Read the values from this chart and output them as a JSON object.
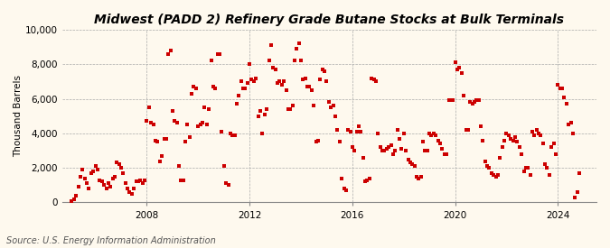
{
  "title": "Midwest (PADD 2) Refinery Grade Butane Stocks at Bulk Terminals",
  "ylabel": "Thousand Barrels",
  "source": "Source: U.S. Energy Information Administration",
  "background_color": "#fef9ee",
  "plot_bg_color": "#fef9ee",
  "marker_color": "#cc0000",
  "marker": "s",
  "marker_size": 9,
  "ylim": [
    0,
    10000
  ],
  "yticks": [
    0,
    2000,
    4000,
    6000,
    8000,
    10000
  ],
  "ytick_labels": [
    "0",
    "2,000",
    "4,000",
    "6,000",
    "8,000",
    "10,000"
  ],
  "xtick_years": [
    2008,
    2012,
    2016,
    2020,
    2024
  ],
  "xlim_left": 2004.7,
  "xlim_right": 2025.5,
  "grid_color": "#aaaaaa",
  "grid_linestyle": "--",
  "title_fontsize": 10,
  "label_fontsize": 7.5,
  "tick_fontsize": 7.5,
  "source_fontsize": 7,
  "data_x": [
    2005.08,
    2005.17,
    2005.25,
    2005.33,
    2005.42,
    2005.5,
    2005.58,
    2005.67,
    2005.75,
    2005.83,
    2005.92,
    2006.0,
    2006.08,
    2006.17,
    2006.25,
    2006.33,
    2006.42,
    2006.5,
    2006.58,
    2006.67,
    2006.75,
    2006.83,
    2006.92,
    2007.0,
    2007.08,
    2007.17,
    2007.25,
    2007.33,
    2007.42,
    2007.5,
    2007.58,
    2007.67,
    2007.75,
    2007.83,
    2007.92,
    2008.0,
    2008.08,
    2008.17,
    2008.25,
    2008.33,
    2008.42,
    2008.5,
    2008.58,
    2008.67,
    2008.75,
    2008.83,
    2008.92,
    2009.0,
    2009.08,
    2009.17,
    2009.25,
    2009.33,
    2009.42,
    2009.5,
    2009.58,
    2009.67,
    2009.75,
    2009.83,
    2009.92,
    2010.0,
    2010.08,
    2010.17,
    2010.25,
    2010.33,
    2010.42,
    2010.5,
    2010.58,
    2010.67,
    2010.75,
    2010.83,
    2010.92,
    2011.0,
    2011.08,
    2011.17,
    2011.25,
    2011.33,
    2011.42,
    2011.5,
    2011.58,
    2011.67,
    2011.75,
    2011.83,
    2011.92,
    2012.0,
    2012.08,
    2012.17,
    2012.25,
    2012.33,
    2012.42,
    2012.5,
    2012.58,
    2012.67,
    2012.75,
    2012.83,
    2012.92,
    2013.0,
    2013.08,
    2013.17,
    2013.25,
    2013.33,
    2013.42,
    2013.5,
    2013.58,
    2013.67,
    2013.75,
    2013.83,
    2013.92,
    2014.0,
    2014.08,
    2014.17,
    2014.25,
    2014.33,
    2014.42,
    2014.5,
    2014.58,
    2014.67,
    2014.75,
    2014.83,
    2014.92,
    2015.0,
    2015.08,
    2015.17,
    2015.25,
    2015.33,
    2015.42,
    2015.5,
    2015.58,
    2015.67,
    2015.75,
    2015.83,
    2015.92,
    2016.0,
    2016.08,
    2016.17,
    2016.25,
    2016.33,
    2016.42,
    2016.5,
    2016.58,
    2016.67,
    2016.75,
    2016.83,
    2016.92,
    2017.0,
    2017.08,
    2017.17,
    2017.25,
    2017.33,
    2017.42,
    2017.5,
    2017.58,
    2017.67,
    2017.75,
    2017.83,
    2017.92,
    2018.0,
    2018.08,
    2018.17,
    2018.25,
    2018.33,
    2018.42,
    2018.5,
    2018.58,
    2018.67,
    2018.75,
    2018.83,
    2018.92,
    2019.0,
    2019.08,
    2019.17,
    2019.25,
    2019.33,
    2019.42,
    2019.5,
    2019.58,
    2019.67,
    2019.75,
    2019.83,
    2019.92,
    2020.0,
    2020.08,
    2020.17,
    2020.25,
    2020.33,
    2020.42,
    2020.5,
    2020.58,
    2020.67,
    2020.75,
    2020.83,
    2020.92,
    2021.0,
    2021.08,
    2021.17,
    2021.25,
    2021.33,
    2021.42,
    2021.5,
    2021.58,
    2021.67,
    2021.75,
    2021.83,
    2021.92,
    2022.0,
    2022.08,
    2022.17,
    2022.25,
    2022.33,
    2022.42,
    2022.5,
    2022.58,
    2022.67,
    2022.75,
    2022.83,
    2022.92,
    2023.0,
    2023.08,
    2023.17,
    2023.25,
    2023.33,
    2023.42,
    2023.5,
    2023.58,
    2023.67,
    2023.75,
    2023.83,
    2023.92,
    2024.0,
    2024.08,
    2024.17,
    2024.25,
    2024.33,
    2024.42,
    2024.5,
    2024.58,
    2024.67,
    2024.75,
    2024.83
  ],
  "data_y": [
    100,
    200,
    400,
    900,
    1500,
    1900,
    1400,
    1100,
    800,
    1700,
    1800,
    2100,
    1900,
    1300,
    1200,
    1000,
    800,
    1100,
    900,
    1400,
    1500,
    2300,
    2200,
    2000,
    1700,
    1100,
    800,
    600,
    500,
    800,
    1200,
    1200,
    1300,
    1100,
    1300,
    4700,
    5500,
    4600,
    4500,
    3600,
    3500,
    2400,
    2700,
    3700,
    3700,
    8600,
    8800,
    5300,
    4700,
    4600,
    2100,
    1300,
    1300,
    3500,
    4500,
    3800,
    6300,
    6700,
    6600,
    4400,
    4500,
    4600,
    5500,
    4500,
    5400,
    8200,
    6700,
    6600,
    8600,
    8600,
    4100,
    2100,
    1100,
    1000,
    4000,
    3900,
    3900,
    5700,
    6200,
    7000,
    6600,
    6600,
    6900,
    8000,
    7100,
    7000,
    7200,
    5000,
    5300,
    4000,
    5100,
    5400,
    8200,
    9100,
    7800,
    7700,
    6900,
    7000,
    6800,
    7000,
    6500,
    5400,
    5400,
    5600,
    8200,
    8900,
    9200,
    8200,
    7100,
    7200,
    6700,
    6700,
    6500,
    5600,
    3500,
    3600,
    7100,
    7700,
    7600,
    7000,
    5800,
    5500,
    5600,
    5000,
    4200,
    3500,
    1400,
    800,
    700,
    4200,
    4100,
    3200,
    3000,
    4100,
    4400,
    4100,
    2600,
    1200,
    1300,
    1400,
    7200,
    7100,
    7000,
    4000,
    3200,
    3000,
    3000,
    3100,
    3200,
    3300,
    2800,
    3000,
    4200,
    3700,
    3100,
    4000,
    3000,
    2500,
    2300,
    2200,
    2100,
    1500,
    1400,
    1500,
    3500,
    3000,
    3000,
    4000,
    3900,
    4000,
    3900,
    3600,
    3400,
    3100,
    2800,
    2800,
    5900,
    5900,
    5900,
    8100,
    7700,
    7800,
    7500,
    6200,
    4200,
    4200,
    5800,
    5700,
    5800,
    5900,
    5900,
    4400,
    3600,
    2400,
    2100,
    2000,
    1700,
    1600,
    1500,
    1600,
    2600,
    3200,
    3600,
    4000,
    3900,
    3700,
    3600,
    3800,
    3500,
    3200,
    2800,
    1800,
    2000,
    2000,
    1600,
    4100,
    3900,
    4200,
    4000,
    3900,
    3400,
    2200,
    2000,
    1600,
    3200,
    3400,
    2800,
    6800,
    6600,
    6600,
    6100,
    5700,
    4500,
    4600,
    4000,
    300,
    600,
    1700
  ]
}
